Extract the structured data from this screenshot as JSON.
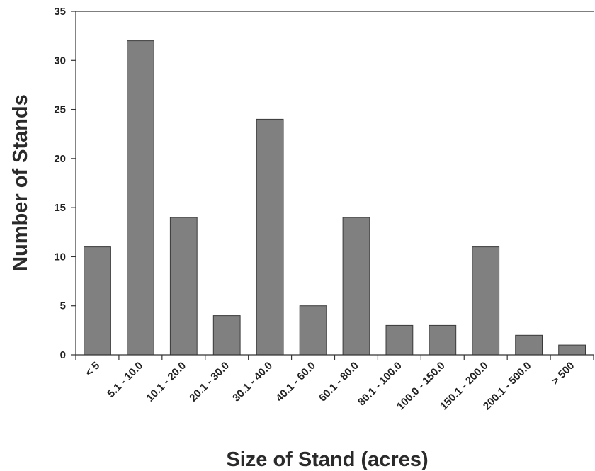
{
  "chart_data": {
    "type": "bar",
    "title": "",
    "xlabel": "Size of Stand (acres)",
    "ylabel": "Number of Stands",
    "categories": [
      "< 5",
      "5.1 - 10.0",
      "10.1 - 20.0",
      "20.1 - 30.0",
      "30.1 - 40.0",
      "40.1 - 60.0",
      "60.1 - 80.0",
      "80.1 - 100.0",
      "100.0 - 150.0",
      "150.1 - 200.0",
      "200.1 - 500.0",
      "> 500"
    ],
    "values": [
      11,
      32,
      14,
      4,
      24,
      5,
      14,
      3,
      3,
      11,
      2,
      1
    ],
    "ylim": [
      0,
      35
    ],
    "yticks": [
      0,
      5,
      10,
      15,
      20,
      25,
      30,
      35
    ],
    "grid": false,
    "legend": "none",
    "colors": {
      "bar_fill": "#808080",
      "bar_stroke": "#3a3a3a",
      "axis": "#333333"
    }
  }
}
